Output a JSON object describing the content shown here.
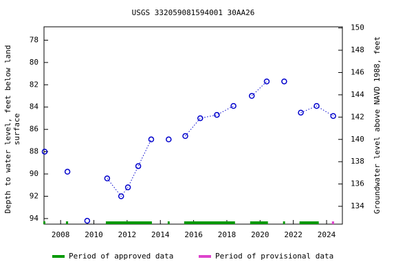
{
  "chart_data": {
    "type": "scatter",
    "title": "USGS 332059081594001 30AA26",
    "y_label": "Depth to water level, feet below land\nsurface",
    "y2_label": "Groundwater level above NAVD 1988, feet",
    "xlim": [
      2007.0,
      2024.95
    ],
    "xticks": [
      2008,
      2010,
      2012,
      2014,
      2016,
      2018,
      2020,
      2022,
      2024
    ],
    "ylim": [
      76.8,
      94.5
    ],
    "y_inverted": true,
    "yticks": [
      78,
      80,
      82,
      84,
      86,
      88,
      90,
      92,
      94
    ],
    "y2lim": [
      132.4,
      150.1
    ],
    "y2ticks": [
      134,
      136,
      138,
      140,
      142,
      144,
      146,
      148,
      150
    ],
    "series": [
      {
        "color": "#0000cc",
        "x": [
          2007.04,
          null,
          2008.41,
          null,
          2009.6,
          null,
          2010.8,
          2011.64,
          2012.05,
          2012.67,
          2013.45,
          null,
          2014.5,
          null,
          2015.5,
          2016.4,
          2017.4,
          2018.4,
          null,
          2019.5,
          2020.4,
          null,
          2021.45,
          null,
          2022.45,
          2023.4,
          2024.4
        ],
        "values": [
          88.0,
          null,
          89.8,
          null,
          94.2,
          null,
          90.4,
          92.0,
          91.2,
          89.3,
          86.9,
          null,
          86.9,
          null,
          86.6,
          85.0,
          84.7,
          83.9,
          null,
          83.0,
          81.7,
          null,
          81.7,
          null,
          84.5,
          83.9,
          84.8
        ]
      }
    ],
    "periods": [
      {
        "name": "Period of approved data",
        "color": "#009900",
        "ranges": [
          [
            2006.96,
            2007.08
          ],
          [
            2008.32,
            2008.45
          ],
          [
            2010.72,
            2013.49
          ],
          [
            2014.44,
            2014.56
          ],
          [
            2015.43,
            2018.49
          ],
          [
            2019.4,
            2020.47
          ],
          [
            2021.38,
            2021.5
          ],
          [
            2022.37,
            2023.53
          ]
        ]
      },
      {
        "name": "Period of provisional data",
        "color": "#dd44cc",
        "ranges": [
          [
            2024.32,
            2024.45
          ]
        ]
      }
    ]
  }
}
